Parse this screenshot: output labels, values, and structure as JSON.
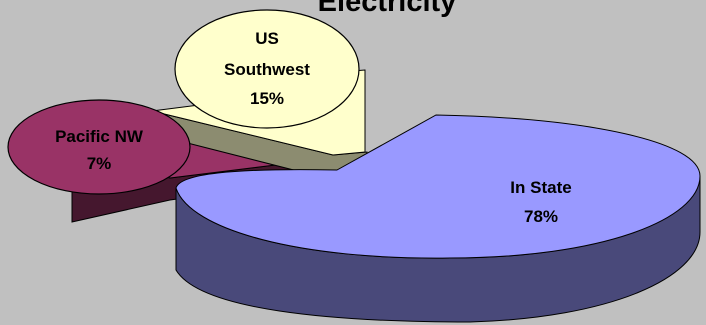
{
  "chart_data": {
    "type": "pie",
    "title": "Electricity",
    "slices": [
      {
        "name": "In State",
        "value": 78,
        "label": "78%",
        "color": "#9999ff"
      },
      {
        "name": "US Southwest",
        "value": 15,
        "label": "15%",
        "color": "#ffffcc"
      },
      {
        "name": "Pacific NW",
        "value": 7,
        "label": "7%",
        "color": "#993366"
      }
    ],
    "exploded": true,
    "three_d": true,
    "legend": "none"
  }
}
